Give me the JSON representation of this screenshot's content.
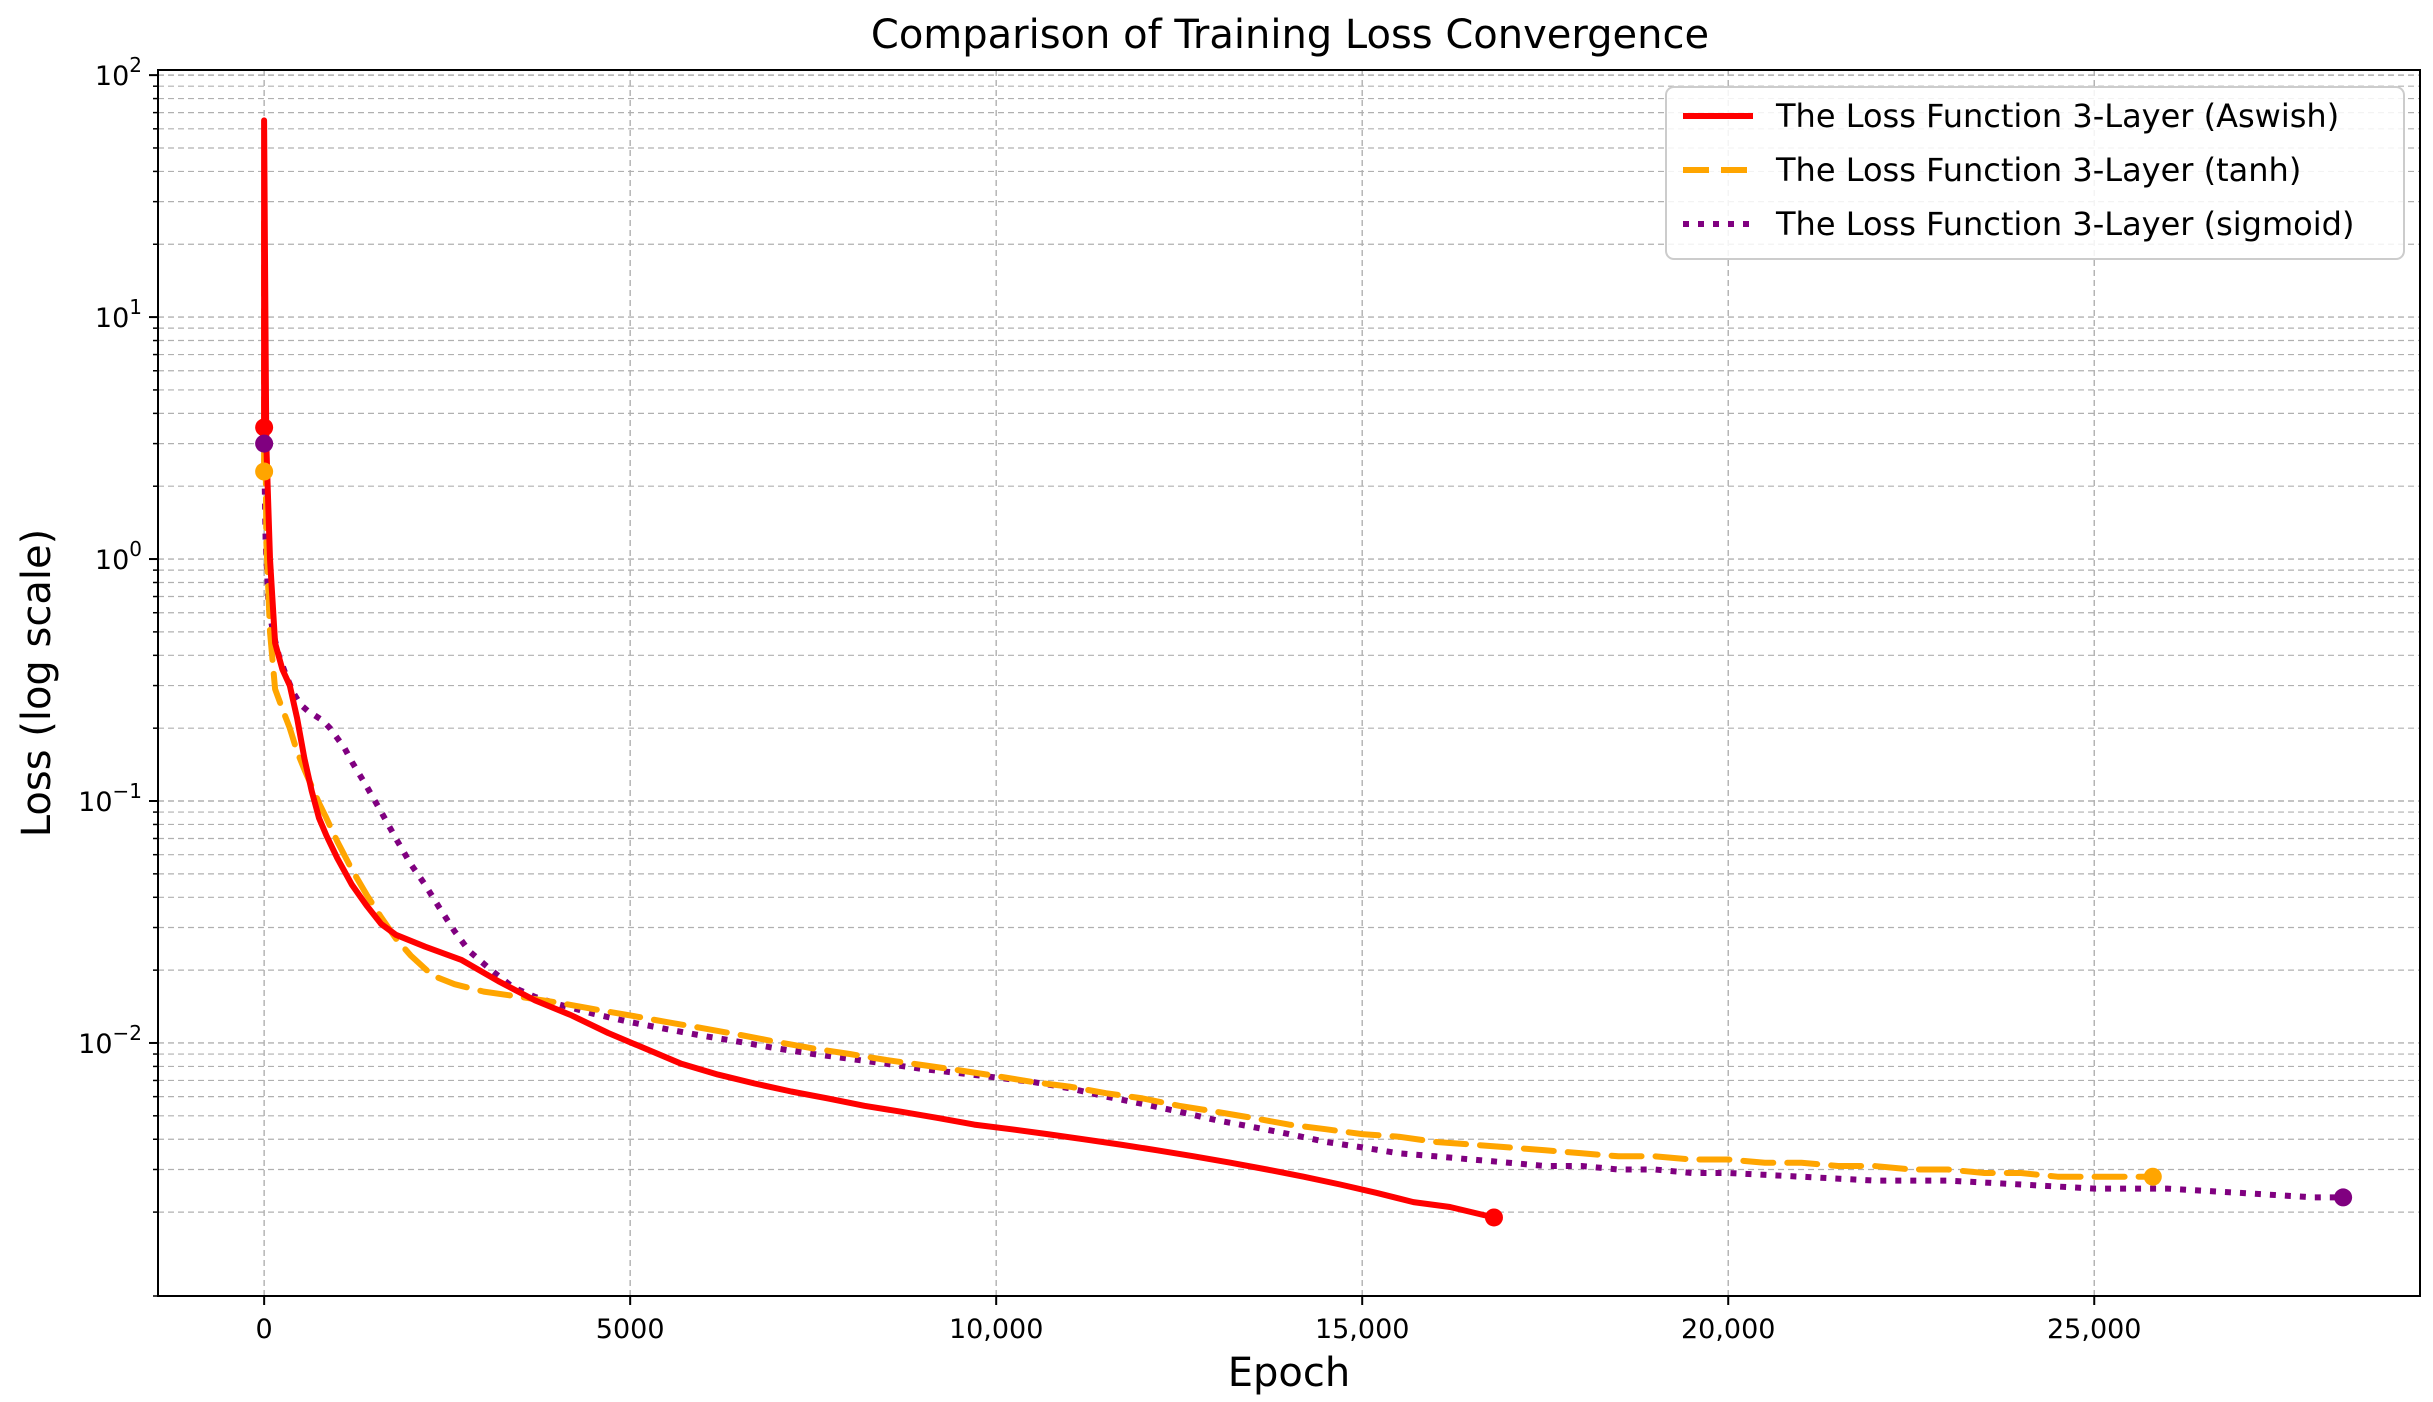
{
  "chart_data": {
    "type": "line",
    "title": "Comparison of Training Loss Convergence",
    "xlabel": "Epoch",
    "ylabel": "Loss (log scale)",
    "xscale": "linear",
    "yscale": "log",
    "xlim": [
      -1450,
      29450
    ],
    "ylim": [
      0.0009,
      105
    ],
    "grid": true,
    "legend_position": "top-right",
    "x_ticks": [
      {
        "value": 0,
        "label": "0"
      },
      {
        "value": 5000,
        "label": "5000"
      },
      {
        "value": 10000,
        "label": "10,000"
      },
      {
        "value": 15000,
        "label": "15,000"
      },
      {
        "value": 20000,
        "label": "20,000"
      },
      {
        "value": 25000,
        "label": "25,000"
      }
    ],
    "y_ticks": [
      {
        "value": 0.01,
        "base": "10",
        "exp": "−2"
      },
      {
        "value": 0.1,
        "base": "10",
        "exp": "−1"
      },
      {
        "value": 1,
        "base": "10",
        "exp": "0"
      },
      {
        "value": 10,
        "base": "10",
        "exp": "1"
      },
      {
        "value": 100,
        "base": "10",
        "exp": "2"
      }
    ],
    "series": [
      {
        "name": "The Loss Function 3-Layer (Aswish)",
        "color": "#ff0000",
        "style": "solid",
        "x": [
          0,
          0,
          10,
          30,
          80,
          150,
          250,
          350,
          450,
          550,
          650,
          750,
          850,
          1000,
          1200,
          1400,
          1600,
          1800,
          2200,
          2700,
          3200,
          3700,
          4200,
          4700,
          5200,
          5700,
          6200,
          6700,
          7200,
          7700,
          8200,
          8700,
          9200,
          9700,
          10200,
          10700,
          11200,
          11700,
          12200,
          12700,
          13200,
          13700,
          14200,
          14700,
          15200,
          15700,
          16200,
          16800
        ],
        "y": [
          3.5,
          65,
          20,
          3.0,
          1.0,
          0.45,
          0.35,
          0.3,
          0.22,
          0.15,
          0.11,
          0.085,
          0.072,
          0.058,
          0.045,
          0.037,
          0.031,
          0.028,
          0.025,
          0.022,
          0.018,
          0.015,
          0.013,
          0.011,
          0.0095,
          0.0082,
          0.0074,
          0.0068,
          0.0063,
          0.0059,
          0.0055,
          0.0052,
          0.0049,
          0.0046,
          0.0044,
          0.0042,
          0.004,
          0.0038,
          0.0036,
          0.0034,
          0.0032,
          0.003,
          0.0028,
          0.0026,
          0.0024,
          0.0022,
          0.0021,
          0.0019
        ]
      },
      {
        "name": "The Loss Function 3-Layer (tanh)",
        "color": "#ffa500",
        "style": "dashed",
        "x": [
          0,
          0,
          10,
          30,
          80,
          150,
          250,
          350,
          450,
          550,
          650,
          750,
          850,
          1000,
          1200,
          1400,
          1600,
          1800,
          2000,
          2300,
          2600,
          3000,
          3500,
          4000,
          4500,
          5000,
          5500,
          6000,
          6500,
          7000,
          7500,
          8000,
          8500,
          9000,
          9500,
          10000,
          10500,
          11000,
          11500,
          12000,
          12500,
          13000,
          13500,
          14000,
          14500,
          15000,
          15500,
          16000,
          16500,
          17000,
          17500,
          18000,
          18500,
          19000,
          19500,
          20000,
          20500,
          21000,
          21500,
          22000,
          22500,
          23000,
          23500,
          24000,
          24500,
          25000,
          25400,
          25800
        ],
        "y": [
          2.3,
          25,
          8,
          1.2,
          0.5,
          0.29,
          0.24,
          0.2,
          0.16,
          0.135,
          0.115,
          0.098,
          0.085,
          0.068,
          0.052,
          0.041,
          0.033,
          0.027,
          0.023,
          0.019,
          0.0175,
          0.0163,
          0.0155,
          0.0147,
          0.0138,
          0.013,
          0.0122,
          0.0115,
          0.0108,
          0.0101,
          0.0095,
          0.009,
          0.0085,
          0.0081,
          0.0077,
          0.0073,
          0.0069,
          0.0066,
          0.0062,
          0.0059,
          0.0055,
          0.0052,
          0.0049,
          0.0046,
          0.0044,
          0.0042,
          0.0041,
          0.0039,
          0.0038,
          0.0037,
          0.0036,
          0.0035,
          0.0034,
          0.0034,
          0.0033,
          0.0033,
          0.0032,
          0.0032,
          0.0031,
          0.0031,
          0.003,
          0.003,
          0.0029,
          0.0029,
          0.0028,
          0.0028,
          0.0028,
          0.0028
        ]
      },
      {
        "name": "The Loss Function 3-Layer (sigmoid)",
        "color": "#800080",
        "style": "dotted",
        "x": [
          0,
          0,
          20,
          60,
          120,
          200,
          300,
          400,
          500,
          600,
          700,
          800,
          900,
          1000,
          1100,
          1200,
          1400,
          1600,
          1800,
          2000,
          2200,
          2400,
          2600,
          2800,
          3100,
          3400,
          3700,
          4000,
          4500,
          5000,
          5500,
          6000,
          6500,
          7000,
          7500,
          8000,
          8500,
          9000,
          9500,
          10000,
          10500,
          11000,
          11500,
          12000,
          12500,
          13000,
          13500,
          14000,
          14500,
          15000,
          15500,
          16000,
          16500,
          17000,
          17500,
          18000,
          18500,
          19000,
          19500,
          20000,
          21000,
          22000,
          23000,
          24000,
          25000,
          26000,
          27000,
          28000,
          28400
        ],
        "y": [
          3.0,
          3.0,
          1.2,
          0.65,
          0.5,
          0.4,
          0.33,
          0.28,
          0.25,
          0.235,
          0.225,
          0.215,
          0.2,
          0.182,
          0.165,
          0.145,
          0.115,
          0.09,
          0.07,
          0.055,
          0.045,
          0.036,
          0.029,
          0.024,
          0.02,
          0.017,
          0.0155,
          0.0145,
          0.0132,
          0.0122,
          0.0114,
          0.0107,
          0.0101,
          0.0095,
          0.009,
          0.0086,
          0.0082,
          0.0078,
          0.0075,
          0.0072,
          0.0069,
          0.0065,
          0.006,
          0.0056,
          0.0052,
          0.0048,
          0.0045,
          0.0042,
          0.0039,
          0.0037,
          0.0035,
          0.0034,
          0.0033,
          0.0032,
          0.0031,
          0.0031,
          0.003,
          0.003,
          0.0029,
          0.0029,
          0.0028,
          0.0027,
          0.0027,
          0.0026,
          0.0025,
          0.0025,
          0.0024,
          0.0023,
          0.0023
        ]
      }
    ],
    "markers": [
      {
        "series": 0,
        "x": 0,
        "y": 3.5
      },
      {
        "series": 0,
        "x": 16800,
        "y": 0.0019
      },
      {
        "series": 1,
        "x": 0,
        "y": 2.3
      },
      {
        "series": 1,
        "x": 25800,
        "y": 0.0028
      },
      {
        "series": 2,
        "x": 0,
        "y": 3.0
      },
      {
        "series": 2,
        "x": 28400,
        "y": 0.0023
      }
    ]
  }
}
